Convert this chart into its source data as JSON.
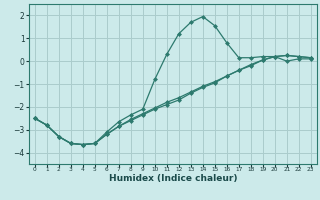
{
  "xlabel": "Humidex (Indice chaleur)",
  "bg_color": "#cceaea",
  "grid_color": "#aacccc",
  "line_color": "#2d7a6e",
  "xlim": [
    -0.5,
    23.5
  ],
  "ylim": [
    -4.5,
    2.5
  ],
  "yticks": [
    -4,
    -3,
    -2,
    -1,
    0,
    1,
    2
  ],
  "xticks": [
    0,
    1,
    2,
    3,
    4,
    5,
    6,
    7,
    8,
    9,
    10,
    11,
    12,
    13,
    14,
    15,
    16,
    17,
    18,
    19,
    20,
    21,
    22,
    23
  ],
  "series1_x": [
    0,
    1,
    2,
    3,
    4,
    5,
    6,
    7,
    8,
    9,
    10,
    11,
    12,
    13,
    14,
    15,
    16,
    17,
    18,
    19,
    20,
    21,
    22,
    23
  ],
  "series1_y": [
    -2.5,
    -2.8,
    -3.3,
    -3.6,
    -3.65,
    -3.6,
    -3.2,
    -2.85,
    -2.55,
    -2.3,
    -2.05,
    -1.8,
    -1.6,
    -1.35,
    -1.1,
    -0.9,
    -0.65,
    -0.4,
    -0.2,
    0.05,
    0.2,
    0.25,
    0.2,
    0.15
  ],
  "series2_x": [
    0,
    1,
    2,
    3,
    4,
    5,
    6,
    7,
    8,
    9,
    10,
    11,
    12,
    13,
    14,
    15,
    16,
    17,
    18,
    19,
    20,
    21,
    22,
    23
  ],
  "series2_y": [
    -2.5,
    -2.8,
    -3.3,
    -3.6,
    -3.65,
    -3.6,
    -3.1,
    -2.65,
    -2.35,
    -2.1,
    -0.8,
    0.3,
    1.2,
    1.7,
    1.95,
    1.55,
    0.8,
    0.15,
    0.15,
    0.2,
    0.2,
    0.0,
    0.1,
    0.1
  ],
  "series3_x": [
    0,
    1,
    2,
    3,
    4,
    5,
    6,
    7,
    8,
    9,
    10,
    11,
    12,
    13,
    14,
    15,
    16,
    17,
    18,
    19,
    20,
    21,
    22,
    23
  ],
  "series3_y": [
    -2.5,
    -2.8,
    -3.3,
    -3.6,
    -3.65,
    -3.6,
    -3.2,
    -2.85,
    -2.6,
    -2.35,
    -2.1,
    -1.9,
    -1.7,
    -1.4,
    -1.15,
    -0.95,
    -0.65,
    -0.4,
    -0.15,
    0.05,
    0.2,
    0.25,
    0.2,
    0.15
  ],
  "markersize": 2.5,
  "linewidth": 0.9
}
